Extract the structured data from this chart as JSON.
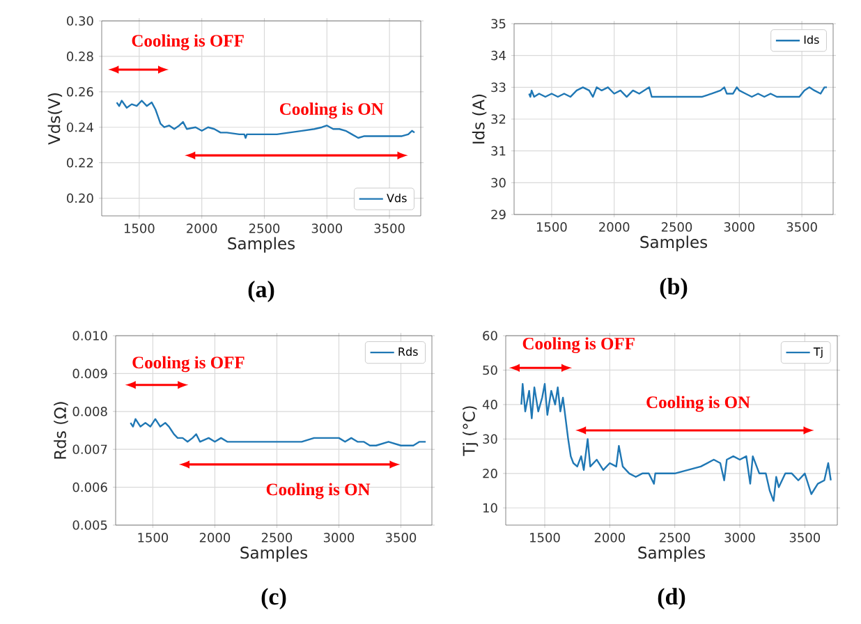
{
  "chart_data": [
    {
      "type": "line",
      "title": "(a)",
      "xlabel": "Samples",
      "ylabel": "Vds(V)",
      "xlim": [
        1200,
        3750
      ],
      "xticks": [
        1500,
        2000,
        2500,
        3000,
        3500
      ],
      "ylim": [
        0.19,
        0.3
      ],
      "yticks": [
        {
          "value": 0.2,
          "label": "0.20"
        },
        0.22,
        0.24,
        0.26,
        0.28,
        {
          "value": 0.3,
          "label": "0.30"
        }
      ],
      "grid": true,
      "legend": "bottom right",
      "annotations": [
        "Cooling is OFF",
        "Cooling is ON"
      ],
      "series": [
        {
          "name": "Vds",
          "color": "#1f77b4",
          "x": [
            1320,
            1340,
            1360,
            1400,
            1440,
            1480,
            1520,
            1560,
            1600,
            1630,
            1650,
            1670,
            1700,
            1740,
            1780,
            1820,
            1850,
            1880,
            1950,
            2000,
            2050,
            2100,
            2150,
            2200,
            2300,
            2340,
            2350,
            2360,
            2500,
            2600,
            2700,
            2800,
            2900,
            2960,
            3000,
            3050,
            3100,
            3150,
            3200,
            3250,
            3300,
            3400,
            3500,
            3600,
            3650,
            3680,
            3700
          ],
          "values": [
            0.254,
            0.252,
            0.255,
            0.251,
            0.253,
            0.252,
            0.255,
            0.252,
            0.254,
            0.25,
            0.246,
            0.242,
            0.24,
            0.241,
            0.239,
            0.241,
            0.243,
            0.239,
            0.24,
            0.238,
            0.24,
            0.239,
            0.237,
            0.237,
            0.236,
            0.236,
            0.234,
            0.236,
            0.236,
            0.236,
            0.237,
            0.238,
            0.239,
            0.24,
            0.241,
            0.239,
            0.239,
            0.238,
            0.236,
            0.234,
            0.235,
            0.235,
            0.235,
            0.235,
            0.236,
            0.238,
            0.237
          ]
        }
      ]
    },
    {
      "type": "line",
      "title": "(b)",
      "xlabel": "Samples",
      "ylabel": "Ids (A)",
      "xlim": [
        1200,
        3750
      ],
      "xticks": [
        1500,
        2000,
        2500,
        3000,
        3500
      ],
      "ylim": [
        29,
        35
      ],
      "yticks": [
        29,
        30,
        31,
        32,
        33,
        34,
        35
      ],
      "grid": true,
      "legend": "top right",
      "series": [
        {
          "name": "Ids",
          "color": "#1f77b4",
          "x": [
            1320,
            1330,
            1340,
            1360,
            1400,
            1450,
            1500,
            1550,
            1600,
            1650,
            1700,
            1750,
            1800,
            1830,
            1860,
            1900,
            1950,
            2000,
            2050,
            2100,
            2150,
            2200,
            2280,
            2300,
            2400,
            2500,
            2600,
            2700,
            2780,
            2850,
            2880,
            2900,
            2950,
            2980,
            3000,
            3050,
            3100,
            3150,
            3200,
            3250,
            3300,
            3400,
            3480,
            3520,
            3560,
            3600,
            3650,
            3680,
            3700
          ],
          "values": [
            32.8,
            32.7,
            32.9,
            32.7,
            32.8,
            32.7,
            32.8,
            32.7,
            32.8,
            32.7,
            32.9,
            33.0,
            32.9,
            32.7,
            33.0,
            32.9,
            33.0,
            32.8,
            32.9,
            32.7,
            32.9,
            32.8,
            33.0,
            32.7,
            32.7,
            32.7,
            32.7,
            32.7,
            32.8,
            32.9,
            33.0,
            32.8,
            32.8,
            33.0,
            32.9,
            32.8,
            32.7,
            32.8,
            32.7,
            32.8,
            32.7,
            32.7,
            32.7,
            32.9,
            33.0,
            32.9,
            32.8,
            33.0,
            33.0
          ]
        }
      ]
    },
    {
      "type": "line",
      "title": "(c)",
      "xlabel": "Samples",
      "ylabel": "Rds (Ω)",
      "xlim": [
        1200,
        3750
      ],
      "xticks": [
        1500,
        2000,
        2500,
        3000,
        3500
      ],
      "ylim": [
        0.005,
        0.01
      ],
      "yticks": [
        0.005,
        0.006,
        0.007,
        0.008,
        0.009,
        {
          "value": 0.01,
          "label": "0.010"
        }
      ],
      "grid": true,
      "legend": "top right",
      "annotations": [
        "Cooling is OFF",
        "Cooling is ON"
      ],
      "series": [
        {
          "name": "Rds",
          "color": "#1f77b4",
          "x": [
            1320,
            1340,
            1360,
            1400,
            1440,
            1480,
            1520,
            1560,
            1600,
            1630,
            1650,
            1670,
            1700,
            1740,
            1780,
            1820,
            1850,
            1880,
            1950,
            2000,
            2050,
            2100,
            2150,
            2200,
            2300,
            2340,
            2350,
            2360,
            2500,
            2600,
            2700,
            2800,
            2900,
            2960,
            3000,
            3050,
            3100,
            3150,
            3200,
            3250,
            3300,
            3400,
            3500,
            3600,
            3650,
            3680,
            3700
          ],
          "values": [
            0.0077,
            0.0076,
            0.0078,
            0.0076,
            0.0077,
            0.0076,
            0.0078,
            0.0076,
            0.0077,
            0.0076,
            0.0075,
            0.0074,
            0.0073,
            0.0073,
            0.0072,
            0.0073,
            0.0074,
            0.0072,
            0.0073,
            0.0072,
            0.0073,
            0.0072,
            0.0072,
            0.0072,
            0.0072,
            0.0072,
            0.0072,
            0.0072,
            0.0072,
            0.0072,
            0.0072,
            0.0073,
            0.0073,
            0.0073,
            0.0073,
            0.0072,
            0.0073,
            0.0072,
            0.0072,
            0.0071,
            0.0071,
            0.0072,
            0.0071,
            0.0071,
            0.0072,
            0.0072,
            0.0072
          ]
        }
      ]
    },
    {
      "type": "line",
      "title": "(d)",
      "xlabel": "Samples",
      "ylabel": "Tj (°C)",
      "xlim": [
        1200,
        3750
      ],
      "xticks": [
        1500,
        2000,
        2500,
        3000,
        3500
      ],
      "ylim": [
        5,
        60
      ],
      "yticks": [
        10,
        20,
        30,
        40,
        50,
        60
      ],
      "grid": true,
      "legend": "top right",
      "annotations": [
        "Cooling is OFF",
        "Cooling is ON"
      ],
      "series": [
        {
          "name": "Tj",
          "color": "#1f77b4",
          "x": [
            1320,
            1330,
            1350,
            1380,
            1400,
            1420,
            1450,
            1480,
            1500,
            1520,
            1550,
            1580,
            1600,
            1620,
            1640,
            1660,
            1680,
            1700,
            1720,
            1750,
            1780,
            1800,
            1830,
            1850,
            1900,
            1950,
            2000,
            2050,
            2070,
            2100,
            2150,
            2200,
            2250,
            2300,
            2340,
            2350,
            2400,
            2500,
            2600,
            2700,
            2800,
            2850,
            2880,
            2900,
            2950,
            3000,
            3050,
            3080,
            3100,
            3150,
            3200,
            3230,
            3260,
            3280,
            3300,
            3350,
            3400,
            3450,
            3500,
            3550,
            3600,
            3650,
            3680,
            3700
          ],
          "values": [
            40,
            46,
            38,
            44,
            36,
            45,
            38,
            42,
            46,
            37,
            44,
            40,
            45,
            38,
            42,
            36,
            30,
            25,
            23,
            22,
            25,
            21,
            30,
            22,
            24,
            21,
            23,
            22,
            28,
            22,
            20,
            19,
            20,
            20,
            17,
            20,
            20,
            20,
            21,
            22,
            24,
            23,
            18,
            24,
            25,
            24,
            25,
            17,
            25,
            20,
            20,
            15,
            12,
            19,
            16,
            20,
            20,
            18,
            20,
            14,
            17,
            18,
            23,
            18
          ]
        }
      ]
    }
  ]
}
